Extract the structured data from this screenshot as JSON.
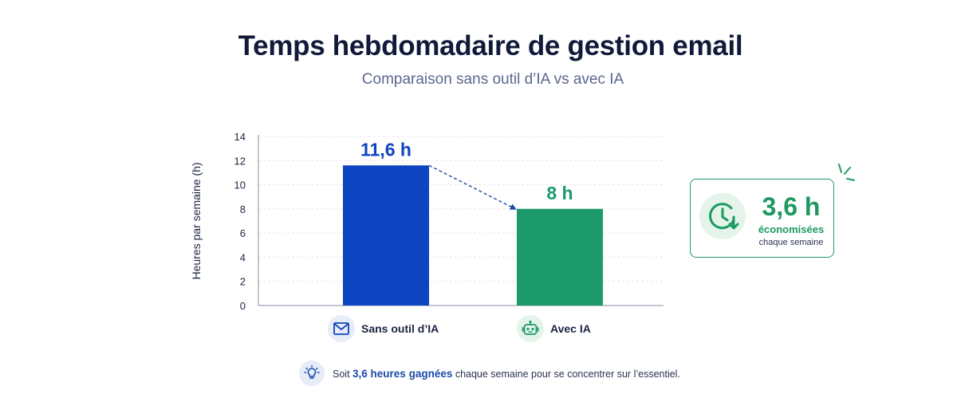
{
  "colors": {
    "blue": "#0f44c0",
    "green": "#1c9a6b",
    "grid": "#e6e6ea",
    "axis": "#8a8fa0",
    "text": "#1b2340"
  },
  "chart_data": {
    "type": "bar",
    "title": "Temps hebdomadaire de gestion email",
    "subtitle": "Comparaison sans outil d’IA vs avec IA",
    "ylabel": "Heures par semaine (h)",
    "xlabel": "",
    "ylim": [
      0,
      14
    ],
    "yticks": [
      "0",
      "2",
      "4",
      "6",
      "8",
      "10",
      "12",
      "14"
    ],
    "grid": true,
    "categories": [
      "Sans outil d’IA",
      "Avec IA"
    ],
    "values": [
      11.6,
      8
    ],
    "data_labels": [
      "11,6 h",
      "8 h"
    ],
    "bar_colors": [
      "#0f44c0",
      "#1c9a6b"
    ],
    "legend": [
      {
        "label": "Sans outil d’IA",
        "icon": "envelope-icon",
        "color": "#0f44c0"
      },
      {
        "label": "Avec IA",
        "icon": "robot-icon",
        "color": "#1c9a6b"
      }
    ],
    "annotation": {
      "value": "3,6 h",
      "unit": "économisées",
      "detail": "chaque semaine",
      "icon": "clock-down-icon"
    }
  },
  "footer": {
    "icon": "lightbulb-icon",
    "prefix": "Soit",
    "highlight": "3,6 heures gagnées",
    "suffix": "chaque semaine pour se concentrer sur l’essentiel."
  }
}
